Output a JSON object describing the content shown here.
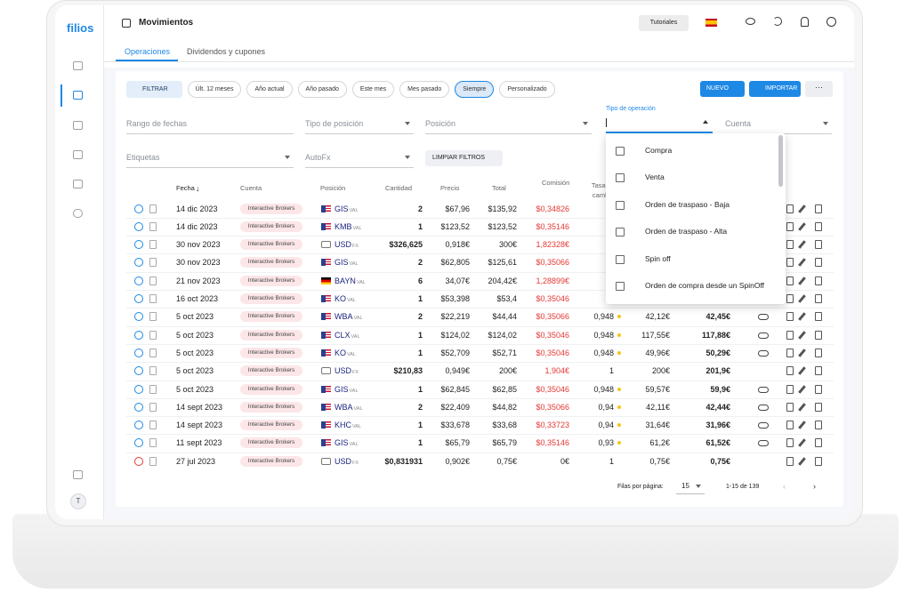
{
  "app": {
    "logo": "filios",
    "avatar": "T"
  },
  "header": {
    "title": "Movimientos",
    "tutorials": "Tutoriales"
  },
  "tabs": [
    "Operaciones",
    "Dividendos y cupones"
  ],
  "toolbar": {
    "filter": "FILTRAR",
    "periods": [
      "Últ. 12 meses",
      "Año actual",
      "Año pasado",
      "Este mes",
      "Mes pasado",
      "Siempre",
      "Personalizado"
    ],
    "selected_period": 5,
    "new": "NUEVO",
    "import": "IMPORTAR"
  },
  "fields": {
    "date_range": "Rango de fechas",
    "position_type": "Tipo de posición",
    "position": "Posición",
    "operation_type": "Tipo de operación",
    "account": "Cuenta",
    "tags": "Etiquetas",
    "autofx": "AutoFx",
    "clear": "LIMPIAR FILTROS"
  },
  "dropdown": {
    "options": [
      "Compra",
      "Venta",
      "Orden de traspaso - Baja",
      "Orden de traspaso - Alta",
      "Spin off",
      "Orden de compra desde un SpinOff"
    ]
  },
  "table": {
    "headers": [
      "Fecha",
      "Cuenta",
      "Posición",
      "Cantidad",
      "Precio",
      "Total",
      "Comisión",
      "Tasa de cambio"
    ],
    "rows": [
      {
        "date": "14 dic 2023",
        "account": "Interactive Brokers",
        "ticker": "GIS",
        "suffix": "VAL",
        "flag": "us",
        "qty": "2",
        "price": "$67,96",
        "total": "$135,92",
        "commission": "$0,34826",
        "commission_color": "#e53935",
        "icon_color": "#1e88e5"
      },
      {
        "date": "14 dic 2023",
        "account": "Interactive Brokers",
        "ticker": "KMB",
        "suffix": "VAL",
        "flag": "us",
        "qty": "1",
        "price": "$123,52",
        "total": "$123,52",
        "commission": "$0,35146",
        "commission_color": "#e53935",
        "icon_color": "#1e88e5"
      },
      {
        "date": "30 nov 2023",
        "account": "Interactive Brokers",
        "ticker": "USD",
        "suffix": "FX",
        "flag": "fx",
        "qty": "$326,625",
        "price": "0,918€",
        "total": "300€",
        "commission": "1,82328€",
        "commission_color": "#e53935",
        "icon_color": "#1e88e5"
      },
      {
        "date": "30 nov 2023",
        "account": "Interactive Brokers",
        "ticker": "GIS",
        "suffix": "VAL",
        "flag": "us",
        "qty": "2",
        "price": "$62,805",
        "total": "$125,61",
        "commission": "$0,35066",
        "commission_color": "#e53935",
        "icon_color": "#1e88e5"
      },
      {
        "date": "21 nov 2023",
        "account": "Interactive Brokers",
        "ticker": "BAYN",
        "suffix": "VAL",
        "flag": "de",
        "qty": "6",
        "price": "34,07€",
        "total": "204,42€",
        "commission": "1,28899€",
        "commission_color": "#e53935",
        "icon_color": "#1e88e5"
      },
      {
        "date": "16 oct 2023",
        "account": "Interactive Brokers",
        "ticker": "KO",
        "suffix": "VAL",
        "flag": "us",
        "qty": "1",
        "price": "$53,398",
        "total": "$53,4",
        "commission": "$0,35046",
        "commission_color": "#e53935",
        "icon_color": "#1e88e5"
      },
      {
        "date": "5 oct 2023",
        "account": "Interactive Brokers",
        "ticker": "WBA",
        "suffix": "VAL",
        "flag": "us",
        "qty": "2",
        "price": "$22,219",
        "total": "$44,44",
        "commission": "$0,35066",
        "commission_color": "#e53935",
        "icon_color": "#1e88e5",
        "rate": "0,948",
        "dot_color": "#f5c518",
        "value": "42,12€",
        "net": "42,45€",
        "toggle": true
      },
      {
        "date": "5 oct 2023",
        "account": "Interactive Brokers",
        "ticker": "CLX",
        "suffix": "VAL",
        "flag": "us",
        "qty": "1",
        "price": "$124,02",
        "total": "$124,02",
        "commission": "$0,35046",
        "commission_color": "#e53935",
        "icon_color": "#1e88e5",
        "rate": "0,948",
        "dot_color": "#f5c518",
        "value": "117,55€",
        "net": "117,88€",
        "toggle": true
      },
      {
        "date": "5 oct 2023",
        "account": "Interactive Brokers",
        "ticker": "KO",
        "suffix": "VAL",
        "flag": "us",
        "qty": "1",
        "price": "$52,709",
        "total": "$52,71",
        "commission": "$0,35046",
        "commission_color": "#e53935",
        "icon_color": "#1e88e5",
        "rate": "0,948",
        "dot_color": "#f5c518",
        "value": "49,96€",
        "net": "50,29€",
        "toggle": true
      },
      {
        "date": "5 oct 2023",
        "account": "Interactive Brokers",
        "ticker": "USD",
        "suffix": "FX",
        "flag": "fx",
        "qty": "$210,83",
        "price": "0,949€",
        "total": "200€",
        "commission": "1,904€",
        "commission_color": "#e53935",
        "icon_color": "#1e88e5",
        "rate": "1",
        "value": "200€",
        "net": "201,9€"
      },
      {
        "date": "5 oct 2023",
        "account": "Interactive Brokers",
        "ticker": "GIS",
        "suffix": "VAL",
        "flag": "us",
        "qty": "1",
        "price": "$62,845",
        "total": "$62,85",
        "commission": "$0,35046",
        "commission_color": "#e53935",
        "icon_color": "#1e88e5",
        "rate": "0,948",
        "dot_color": "#f5c518",
        "value": "59,57€",
        "net": "59,9€",
        "toggle": true
      },
      {
        "date": "14 sept 2023",
        "account": "Interactive Brokers",
        "ticker": "WBA",
        "suffix": "VAL",
        "flag": "us",
        "qty": "2",
        "price": "$22,409",
        "total": "$44,82",
        "commission": "$0,35066",
        "commission_color": "#e53935",
        "icon_color": "#1e88e5",
        "rate": "0,94",
        "dot_color": "#f5c518",
        "value": "42,11€",
        "net": "42,44€",
        "toggle": true
      },
      {
        "date": "14 sept 2023",
        "account": "Interactive Brokers",
        "ticker": "KHC",
        "suffix": "VAL",
        "flag": "us",
        "qty": "1",
        "price": "$33,678",
        "total": "$33,68",
        "commission": "$0,33723",
        "commission_color": "#e53935",
        "icon_color": "#1e88e5",
        "rate": "0,94",
        "dot_color": "#f5c518",
        "value": "31,64€",
        "net": "31,96€",
        "toggle": true
      },
      {
        "date": "11 sept 2023",
        "account": "Interactive Brokers",
        "ticker": "GIS",
        "suffix": "VAL",
        "flag": "us",
        "qty": "1",
        "price": "$65,79",
        "total": "$65,79",
        "commission": "$0,35146",
        "commission_color": "#e53935",
        "icon_color": "#1e88e5",
        "rate": "0,93",
        "dot_color": "#f5c518",
        "value": "61,2€",
        "net": "61,52€",
        "toggle": true
      },
      {
        "date": "27 jul 2023",
        "account": "Interactive Brokers",
        "ticker": "USD",
        "suffix": "FX",
        "flag": "fx",
        "qty": "$0,831931",
        "price": "0,902€",
        "total": "0,75€",
        "commission": "0€",
        "commission_color": "#222222",
        "icon_color": "#e53935",
        "rate": "1",
        "value": "0,75€",
        "net": "0,75€"
      }
    ]
  },
  "pagination": {
    "rows_per_page_label": "Filas por página:",
    "rows_per_page": "15",
    "range": "1-15 de 139"
  }
}
